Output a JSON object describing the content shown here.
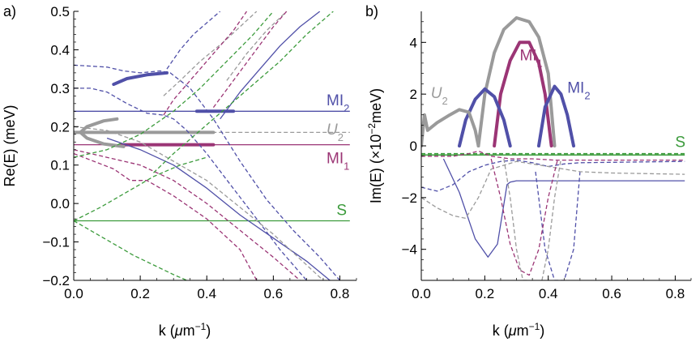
{
  "chart_data": [
    {
      "type": "line",
      "panel_label": "a)",
      "xlabel_prefix": "k (",
      "xlabel_mu": "μ",
      "xlabel_unit": "m",
      "xlabel_exp": "−1",
      "xlabel_suffix": ")",
      "ylabel": "Re(E) (meV)",
      "xlim": [
        0,
        0.85
      ],
      "ylim": [
        -0.2,
        0.5
      ],
      "xticks": [
        0.0,
        0.2,
        0.4,
        0.6,
        0.8
      ],
      "xtick_labels": [
        "0.0",
        "0.2",
        "0.4",
        "0.6",
        "0.8"
      ],
      "yticks": [
        -0.2,
        -0.1,
        0.0,
        0.1,
        0.2,
        0.3,
        0.4,
        0.5
      ],
      "ytick_labels": [
        "−0.2",
        "−0.1",
        "0.0",
        "0.1",
        "0.2",
        "0.3",
        "0.4",
        "0.5"
      ],
      "colors": {
        "blue": "#5050a8",
        "gray": "#9a9a9a",
        "magenta": "#9b3575",
        "green": "#3c9b3c"
      },
      "series": [
        {
          "name": "MI2 flat",
          "color": "blue",
          "style": "solid",
          "width": 1.3,
          "x": [
            0,
            0.83
          ],
          "y": [
            0.24,
            0.24
          ]
        },
        {
          "name": "MI1 flat",
          "color": "magenta",
          "style": "solid",
          "width": 1.3,
          "x": [
            0,
            0.83
          ],
          "y": [
            0.153,
            0.153
          ]
        },
        {
          "name": "S flat",
          "color": "green",
          "style": "solid",
          "width": 1.3,
          "x": [
            0,
            0.83
          ],
          "y": [
            -0.045,
            -0.045
          ]
        },
        {
          "name": "U2 flat",
          "color": "gray",
          "style": "dashed",
          "width": 1.3,
          "x": [
            0.3,
            0.83
          ],
          "y": [
            0.185,
            0.185
          ]
        },
        {
          "name": "MI2 thick",
          "color": "blue",
          "style": "solid",
          "width": 4,
          "x": [
            0.37,
            0.48
          ],
          "y": [
            0.24,
            0.24
          ]
        },
        {
          "name": "MI1 thick",
          "color": "magenta",
          "style": "solid",
          "width": 4,
          "x": [
            0.14,
            0.42
          ],
          "y": [
            0.153,
            0.153
          ]
        },
        {
          "name": "U2 thick",
          "color": "gray",
          "style": "solid",
          "width": 4,
          "x": [
            0.0,
            0.42
          ],
          "y": [
            0.185,
            0.185
          ]
        },
        {
          "name": "U2 loop",
          "color": "gray",
          "style": "solid",
          "width": 4,
          "x": [
            0.13,
            0.09,
            0.04,
            0.02,
            0.04,
            0.09,
            0.15
          ],
          "y": [
            0.22,
            0.215,
            0.2,
            0.185,
            0.17,
            0.155,
            0.148
          ]
        },
        {
          "name": "blue thick upper",
          "color": "blue",
          "style": "solid",
          "width": 4,
          "x": [
            0.12,
            0.16,
            0.22,
            0.28
          ],
          "y": [
            0.31,
            0.325,
            0.335,
            0.34
          ]
        },
        {
          "name": "blue dashed upper",
          "color": "blue",
          "style": "dashed",
          "width": 1.3,
          "x": [
            0,
            0.1,
            0.15,
            0.2,
            0.26,
            0.29,
            0.35,
            0.42,
            0.5,
            0.58,
            0.66,
            0.74,
            0.8
          ],
          "y": [
            0.36,
            0.355,
            0.345,
            0.34,
            0.345,
            0.34,
            0.3,
            0.22,
            0.11,
            0.01,
            -0.07,
            -0.14,
            -0.2
          ]
        },
        {
          "name": "blue dashed top",
          "color": "blue",
          "style": "dashed",
          "width": 1.3,
          "x": [
            0.28,
            0.32,
            0.36,
            0.4,
            0.44
          ],
          "y": [
            0.35,
            0.4,
            0.44,
            0.47,
            0.5
          ]
        },
        {
          "name": "blue dashed mid",
          "color": "blue",
          "style": "dashed",
          "width": 1.3,
          "x": [
            0,
            0.05,
            0.1,
            0.16,
            0.22,
            0.27,
            0.3,
            0.34,
            0.4,
            0.47,
            0.55,
            0.62,
            0.7
          ],
          "y": [
            0.3,
            0.3,
            0.29,
            0.26,
            0.235,
            0.23,
            0.22,
            0.19,
            0.13,
            0.05,
            -0.04,
            -0.12,
            -0.2
          ]
        },
        {
          "name": "blue solid lower",
          "color": "blue",
          "style": "solid",
          "width": 1.3,
          "x": [
            0.1,
            0.2,
            0.3,
            0.4,
            0.5,
            0.6,
            0.7,
            0.77
          ],
          "y": [
            0.17,
            0.14,
            0.1,
            0.04,
            -0.03,
            -0.09,
            -0.15,
            -0.2
          ]
        },
        {
          "name": "blue solid upper",
          "color": "blue",
          "style": "solid",
          "width": 1.3,
          "x": [
            0.44,
            0.5,
            0.56,
            0.62,
            0.68,
            0.74
          ],
          "y": [
            0.22,
            0.29,
            0.35,
            0.41,
            0.46,
            0.5
          ]
        },
        {
          "name": "gray dashed upper",
          "color": "gray",
          "style": "dashed",
          "width": 1.3,
          "x": [
            0.27,
            0.32,
            0.38,
            0.45,
            0.5,
            0.55
          ],
          "y": [
            0.28,
            0.32,
            0.37,
            0.42,
            0.46,
            0.5
          ]
        },
        {
          "name": "gray dashed upper2",
          "color": "gray",
          "style": "dashed",
          "width": 1.3,
          "x": [
            0.46,
            0.52,
            0.58,
            0.64
          ],
          "y": [
            0.32,
            0.39,
            0.45,
            0.5
          ]
        },
        {
          "name": "gray dashed lower",
          "color": "gray",
          "style": "dashed",
          "width": 1.3,
          "x": [
            0,
            0.1,
            0.2,
            0.3,
            0.4,
            0.5,
            0.6,
            0.7,
            0.75
          ],
          "y": [
            0.2,
            0.19,
            0.16,
            0.11,
            0.06,
            -0.01,
            -0.08,
            -0.16,
            -0.2
          ]
        },
        {
          "name": "magenta dashed upper",
          "color": "magenta",
          "style": "dashed",
          "width": 1.3,
          "x": [
            0.27,
            0.3,
            0.36,
            0.42,
            0.48,
            0.52
          ],
          "y": [
            0.23,
            0.27,
            0.33,
            0.39,
            0.45,
            0.5
          ]
        },
        {
          "name": "magenta dashed upper2",
          "color": "magenta",
          "style": "dashed",
          "width": 1.3,
          "x": [
            0.42,
            0.48,
            0.54,
            0.6,
            0.64
          ],
          "y": [
            0.25,
            0.32,
            0.39,
            0.46,
            0.5
          ]
        },
        {
          "name": "magenta dashed lower",
          "color": "magenta",
          "style": "dashed",
          "width": 1.3,
          "x": [
            0,
            0.1,
            0.2,
            0.3,
            0.4,
            0.5,
            0.6,
            0.68
          ],
          "y": [
            0.14,
            0.12,
            0.1,
            0.06,
            0.0,
            -0.07,
            -0.14,
            -0.2
          ]
        },
        {
          "name": "magenta dashed lower2",
          "color": "magenta",
          "style": "dashed",
          "width": 1.3,
          "x": [
            0,
            0.12,
            0.17,
            0.22,
            0.3,
            0.4,
            0.5,
            0.55
          ],
          "y": [
            0.13,
            0.09,
            0.06,
            0.06,
            0.02,
            -0.04,
            -0.12,
            -0.2
          ]
        },
        {
          "name": "green dashed upper",
          "color": "green",
          "style": "dashed",
          "width": 1.3,
          "x": [
            0.24,
            0.3,
            0.38,
            0.46,
            0.54,
            0.62,
            0.7,
            0.78
          ],
          "y": [
            0.08,
            0.13,
            0.19,
            0.25,
            0.31,
            0.37,
            0.44,
            0.5
          ]
        },
        {
          "name": "green dashed upper2",
          "color": "green",
          "style": "dashed",
          "width": 1.3,
          "x": [
            0,
            0.1,
            0.2,
            0.3,
            0.38,
            0.46,
            0.54,
            0.6
          ],
          "y": [
            0.12,
            0.14,
            0.18,
            0.24,
            0.3,
            0.37,
            0.44,
            0.5
          ]
        },
        {
          "name": "green dashed diverge up",
          "color": "green",
          "style": "dashed",
          "width": 1.3,
          "x": [
            0,
            0.08,
            0.16,
            0.24,
            0.32,
            0.4
          ],
          "y": [
            -0.045,
            -0.01,
            0.03,
            0.07,
            0.1,
            0.12
          ]
        },
        {
          "name": "green dashed diverge down",
          "color": "green",
          "style": "dashed",
          "width": 1.3,
          "x": [
            0,
            0.06,
            0.12,
            0.18,
            0.24,
            0.3,
            0.34
          ],
          "y": [
            -0.045,
            -0.075,
            -0.105,
            -0.135,
            -0.16,
            -0.185,
            -0.2
          ]
        }
      ],
      "annotations": [
        {
          "text": "MI",
          "sub": "2",
          "x": 0.76,
          "y": 0.255,
          "color": "blue"
        },
        {
          "text": "U",
          "sub": "2",
          "x": 0.76,
          "y": 0.18,
          "color": "gray",
          "italic": true
        },
        {
          "text": "MI",
          "sub": "1",
          "x": 0.76,
          "y": 0.105,
          "color": "magenta"
        },
        {
          "text": "S",
          "x": 0.79,
          "y": -0.03,
          "color": "green"
        }
      ]
    },
    {
      "type": "line",
      "panel_label": "b)",
      "xlabel_prefix": "k (",
      "xlabel_mu": "μ",
      "xlabel_unit": "m",
      "xlabel_exp": "−1",
      "xlabel_suffix": ")",
      "ylabel_prefix": "Im(E) (×10",
      "ylabel_exp": "−2",
      "ylabel_suffix": "meV)",
      "xlim": [
        0,
        0.85
      ],
      "ylim": [
        -5.2,
        5.2
      ],
      "xticks": [
        0.0,
        0.2,
        0.4,
        0.6,
        0.8
      ],
      "xtick_labels": [
        "0.0",
        "0.2",
        "0.4",
        "0.6",
        "0.8"
      ],
      "yticks": [
        -4,
        -2,
        0,
        2,
        4
      ],
      "ytick_labels": [
        "−4",
        "−2",
        "0",
        "2",
        "4"
      ],
      "colors": {
        "blue": "#5050a8",
        "gray": "#9a9a9a",
        "magenta": "#9b3575",
        "green": "#3c9b3c"
      },
      "series": [
        {
          "name": "gray arc",
          "color": "gray",
          "style": "solid",
          "width": 4,
          "x": [
            0.18,
            0.2,
            0.23,
            0.26,
            0.3,
            0.34,
            0.37,
            0.4,
            0.42
          ],
          "y": [
            0,
            2.0,
            3.6,
            4.5,
            4.95,
            4.8,
            4.2,
            2.8,
            0
          ]
        },
        {
          "name": "MI1 arc",
          "color": "magenta",
          "style": "solid",
          "width": 4,
          "x": [
            0.23,
            0.25,
            0.28,
            0.31,
            0.34,
            0.37,
            0.39,
            0.41
          ],
          "y": [
            0,
            2.0,
            3.3,
            4.0,
            4.0,
            3.2,
            2.0,
            0
          ]
        },
        {
          "name": "MI2 arc left",
          "color": "blue",
          "style": "solid",
          "width": 4,
          "x": [
            0.12,
            0.14,
            0.17,
            0.2,
            0.23,
            0.26,
            0.28
          ],
          "y": [
            0,
            1.0,
            1.8,
            2.2,
            1.9,
            1.0,
            0
          ]
        },
        {
          "name": "MI2 arc right",
          "color": "blue",
          "style": "solid",
          "width": 4,
          "x": [
            0.37,
            0.39,
            0.42,
            0.44,
            0.46,
            0.48
          ],
          "y": [
            0,
            1.5,
            2.3,
            2.0,
            1.2,
            0
          ]
        },
        {
          "name": "U2 thick",
          "color": "gray",
          "style": "solid",
          "width": 4,
          "x": [
            0.0,
            0.01,
            0.02,
            0.05,
            0.09,
            0.12,
            0.15,
            0.17,
            0.18
          ],
          "y": [
            0,
            1.2,
            0.6,
            0.9,
            1.2,
            1.4,
            1.3,
            0.6,
            0
          ]
        },
        {
          "name": "green solid",
          "color": "green",
          "style": "solid",
          "width": 1.5,
          "x": [
            0,
            0.83
          ],
          "y": [
            -0.35,
            -0.35
          ]
        },
        {
          "name": "green dashed",
          "color": "green",
          "style": "dashed",
          "width": 1.5,
          "x": [
            0,
            0.83
          ],
          "y": [
            -0.3,
            -0.3
          ]
        },
        {
          "name": "blue solid deep",
          "color": "blue",
          "style": "solid",
          "width": 1.3,
          "x": [
            0.07,
            0.12,
            0.17,
            0.21,
            0.24,
            0.27,
            0.28,
            0.3,
            0.37,
            0.83
          ],
          "y": [
            -0.5,
            -1.8,
            -3.6,
            -4.3,
            -3.8,
            -1.5,
            -1.4,
            -1.35,
            -1.35,
            -1.35
          ]
        },
        {
          "name": "blue dashed",
          "color": "blue",
          "style": "dashed",
          "width": 1.3,
          "x": [
            0,
            0.05,
            0.1,
            0.15,
            0.2,
            0.25,
            0.3,
            0.35,
            0.4,
            0.45,
            0.5,
            0.83
          ],
          "y": [
            -1.6,
            -1.75,
            -1.5,
            -1.0,
            -0.75,
            -0.6,
            -0.55,
            -0.65,
            -0.8,
            -0.7,
            -0.65,
            -0.6
          ]
        },
        {
          "name": "blue dashed deep",
          "color": "blue",
          "style": "dashed",
          "width": 1.3,
          "x": [
            0.36,
            0.39,
            0.42,
            0.45,
            0.48,
            0.5
          ],
          "y": [
            -1.0,
            -4.0,
            -5.2,
            -5.2,
            -4.0,
            -1.0
          ]
        },
        {
          "name": "gray dashed",
          "color": "gray",
          "style": "dashed",
          "width": 1.3,
          "x": [
            0,
            0.05,
            0.1,
            0.14,
            0.18,
            0.22,
            0.3,
            0.4,
            0.5,
            0.6,
            0.83
          ],
          "y": [
            -2.0,
            -2.4,
            -2.7,
            -2.8,
            -2.0,
            -0.9,
            -0.6,
            -0.8,
            -1.0,
            -1.05,
            -1.1
          ]
        },
        {
          "name": "gray dashed deep",
          "color": "gray",
          "style": "dashed",
          "width": 1.3,
          "x": [
            0.26,
            0.28,
            0.3,
            0.32,
            0.34
          ],
          "y": [
            -0.5,
            -2.0,
            -4.0,
            -5.2,
            -5.2
          ]
        },
        {
          "name": "gray dashed deep2",
          "color": "gray",
          "style": "dashed",
          "width": 1.3,
          "x": [
            0.38,
            0.4,
            0.42,
            0.44
          ],
          "y": [
            -5.2,
            -4.0,
            -2.0,
            -0.5
          ]
        },
        {
          "name": "magenta dashed",
          "color": "magenta",
          "style": "dashed",
          "width": 1.3,
          "x": [
            0,
            0.1,
            0.15,
            0.18,
            0.22,
            0.28,
            0.35,
            0.42,
            0.5,
            0.83
          ],
          "y": [
            -0.4,
            -0.4,
            -0.3,
            -0.2,
            -0.4,
            -0.5,
            -0.5,
            -0.55,
            -0.55,
            -0.55
          ]
        },
        {
          "name": "magenta dashed deep",
          "color": "magenta",
          "style": "dashed",
          "width": 1.3,
          "x": [
            0.22,
            0.25,
            0.28,
            0.31,
            0.34,
            0.37,
            0.4,
            0.43
          ],
          "y": [
            -0.5,
            -2.0,
            -3.8,
            -4.8,
            -5.0,
            -4.0,
            -2.0,
            -0.5
          ]
        }
      ],
      "annotations": [
        {
          "text": "MI",
          "sub": "1",
          "x": 0.31,
          "y": 3.3,
          "color": "magenta"
        },
        {
          "text": "U",
          "sub": "2",
          "x": 0.03,
          "y": 1.85,
          "color": "gray",
          "italic": true
        },
        {
          "text": "MI",
          "sub": "2",
          "x": 0.46,
          "y": 2.05,
          "color": "blue"
        },
        {
          "text": "S",
          "x": 0.8,
          "y": -0.05,
          "color": "green"
        }
      ]
    }
  ]
}
